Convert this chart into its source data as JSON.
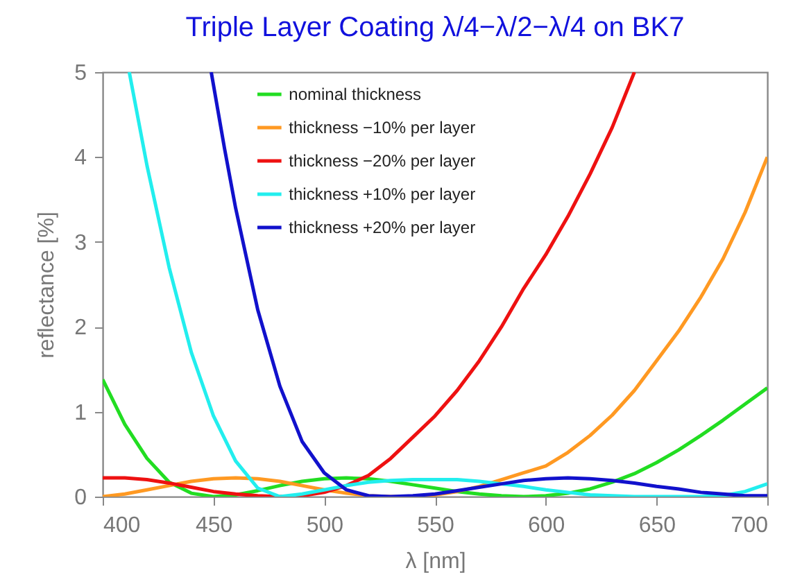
{
  "chart_data": {
    "type": "line",
    "title": "Triple Layer Coating λ/4−λ/2−λ/4 on BK7",
    "xlabel": "λ [nm]",
    "ylabel": "reflectance [%]",
    "xlim": [
      400,
      700
    ],
    "xticks": [
      400,
      450,
      500,
      550,
      600,
      650,
      700
    ],
    "ylim": [
      0,
      5
    ],
    "yticks": [
      0,
      1,
      2,
      3,
      4,
      5
    ],
    "grid": false,
    "legend": "top",
    "marker": "none",
    "line_style": "solid",
    "series": [
      {
        "name": "nominal thickness",
        "color": "#22dd22",
        "x": [
          400,
          410,
          420,
          430,
          440,
          450,
          460,
          470,
          480,
          490,
          500,
          510,
          520,
          530,
          540,
          550,
          560,
          570,
          580,
          590,
          600,
          610,
          620,
          630,
          640,
          650,
          660,
          670,
          680,
          690,
          700
        ],
        "values": [
          1.38,
          0.85,
          0.45,
          0.17,
          0.04,
          0,
          0.02,
          0.07,
          0.13,
          0.18,
          0.21,
          0.22,
          0.21,
          0.18,
          0.14,
          0.1,
          0.06,
          0.03,
          0.01,
          0,
          0.01,
          0.04,
          0.09,
          0.17,
          0.27,
          0.4,
          0.55,
          0.72,
          0.9,
          1.09,
          1.28
        ]
      },
      {
        "name": "thickness −10% per layer",
        "color": "#ff9922",
        "x": [
          400,
          410,
          420,
          430,
          440,
          450,
          460,
          470,
          480,
          490,
          500,
          510,
          520,
          530,
          540,
          550,
          560,
          570,
          580,
          590,
          600,
          610,
          620,
          630,
          640,
          650,
          660,
          670,
          680,
          690,
          700
        ],
        "values": [
          0,
          0.03,
          0.08,
          0.13,
          0.18,
          0.21,
          0.22,
          0.21,
          0.18,
          0.13,
          0.08,
          0.04,
          0.01,
          0,
          0,
          0.02,
          0.06,
          0.12,
          0.2,
          0.28,
          0.36,
          0.52,
          0.72,
          0.96,
          1.25,
          1.6,
          1.95,
          2.35,
          2.8,
          3.35,
          4.0
        ]
      },
      {
        "name": "thickness −20% per layer",
        "color": "#ee1111",
        "x": [
          400,
          410,
          420,
          430,
          440,
          450,
          460,
          470,
          480,
          490,
          500,
          510,
          520,
          530,
          540,
          550,
          560,
          570,
          580,
          590,
          600,
          610,
          620,
          630,
          640
        ],
        "values": [
          0.22,
          0.22,
          0.2,
          0.16,
          0.11,
          0.06,
          0.03,
          0.01,
          0,
          0.01,
          0.05,
          0.13,
          0.25,
          0.45,
          0.7,
          0.95,
          1.25,
          1.6,
          2.0,
          2.45,
          2.85,
          3.3,
          3.8,
          4.35,
          5.0
        ]
      },
      {
        "name": "thickness +10% per layer",
        "color": "#22eeee",
        "x": [
          412,
          420,
          430,
          440,
          450,
          460,
          470,
          480,
          490,
          500,
          510,
          520,
          530,
          540,
          550,
          560,
          570,
          580,
          590,
          600,
          610,
          620,
          630,
          640,
          650,
          660,
          670,
          680,
          690,
          700
        ],
        "values": [
          5.0,
          3.9,
          2.7,
          1.7,
          0.95,
          0.42,
          0.1,
          0,
          0.03,
          0.08,
          0.13,
          0.17,
          0.19,
          0.2,
          0.2,
          0.2,
          0.18,
          0.15,
          0.12,
          0.08,
          0.05,
          0.02,
          0.01,
          0,
          0,
          0,
          0,
          0.01,
          0.06,
          0.15
        ]
      },
      {
        "name": "thickness +20% per layer",
        "color": "#1111cc",
        "x": [
          449,
          455,
          460,
          470,
          480,
          490,
          500,
          510,
          520,
          530,
          540,
          550,
          560,
          570,
          580,
          590,
          600,
          610,
          620,
          630,
          640,
          650,
          660,
          670,
          680,
          690,
          700
        ],
        "values": [
          5.0,
          4.1,
          3.4,
          2.2,
          1.3,
          0.65,
          0.28,
          0.08,
          0.01,
          0,
          0.01,
          0.03,
          0.07,
          0.11,
          0.15,
          0.19,
          0.21,
          0.22,
          0.21,
          0.19,
          0.16,
          0.12,
          0.09,
          0.05,
          0.03,
          0.01,
          0.01
        ]
      }
    ]
  }
}
